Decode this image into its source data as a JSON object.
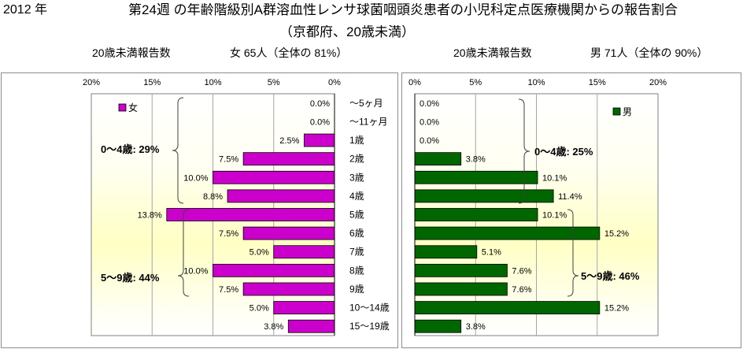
{
  "chart_data": {
    "type": "bar",
    "orientation": "horizontal",
    "layout": "back-to-back",
    "period": "2012 年",
    "title": "第24週 の年齢階級別A群溶血性レンサ球菌咽頭炎患者の小児科定点医療機関からの報告割合",
    "subtitle": "（京都府、20歳未満）",
    "categories": [
      "～5ヶ月",
      "～11ヶ月",
      "1歳",
      "2歳",
      "3歳",
      "4歳",
      "5歳",
      "6歳",
      "7歳",
      "8歳",
      "9歳",
      "10～14歳",
      "15～19歳"
    ],
    "xlim": [
      0,
      20
    ],
    "ticks": [
      0,
      5,
      10,
      15,
      20
    ],
    "tick_labels": [
      "0%",
      "5%",
      "10%",
      "15%",
      "20%"
    ],
    "grid": true,
    "series": [
      {
        "name": "女",
        "side": "left",
        "color": "#cc00cc",
        "legend": "top-left",
        "count_label": "20歳未満報告数",
        "total_label": "女 65人（全体の 81%）",
        "values": [
          0.0,
          0.0,
          2.5,
          7.5,
          10.0,
          8.8,
          13.8,
          7.5,
          5.0,
          10.0,
          7.5,
          5.0,
          3.8
        ],
        "labels": [
          "0.0%",
          "0.0%",
          "2.5%",
          "7.5%",
          "10.0%",
          "8.8%",
          "13.8%",
          "7.5%",
          "5.0%",
          "10.0%",
          "7.5%",
          "5.0%",
          "3.8%"
        ],
        "annotations": [
          "0～4歳: 29%",
          "5～9歳: 44%"
        ]
      },
      {
        "name": "男",
        "side": "right",
        "color": "#006600",
        "legend": "top-right",
        "count_label": "20歳未満報告数",
        "total_label": "男 71人（全体の 90%）",
        "values": [
          0.0,
          0.0,
          0.0,
          3.8,
          10.1,
          11.4,
          10.1,
          15.2,
          5.1,
          7.6,
          7.6,
          15.2,
          3.8
        ],
        "labels": [
          "0.0%",
          "0.0%",
          "0.0%",
          "3.8%",
          "10.1%",
          "11.4%",
          "10.1%",
          "15.2%",
          "5.1%",
          "7.6%",
          "7.6%",
          "15.2%",
          "3.8%"
        ],
        "annotations": [
          "0～4歳: 25%",
          "5～9歳: 46%"
        ]
      }
    ]
  }
}
